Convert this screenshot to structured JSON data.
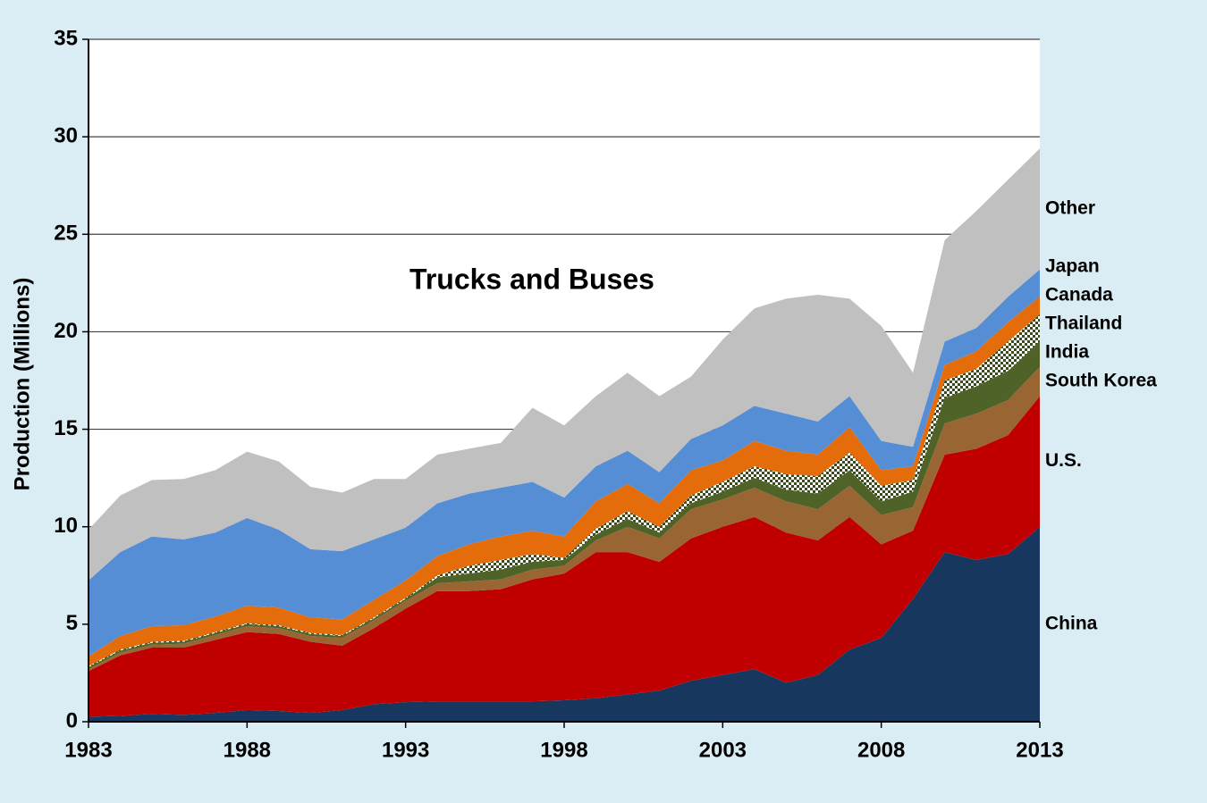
{
  "chart_data": {
    "type": "stacked_area",
    "title": "Trucks and Buses",
    "y_label": "Production (Millions)",
    "x": [
      1983,
      1984,
      1985,
      1986,
      1987,
      1988,
      1989,
      1990,
      1991,
      1992,
      1993,
      1994,
      1995,
      1996,
      1997,
      1998,
      1999,
      2000,
      2001,
      2002,
      2003,
      2004,
      2005,
      2006,
      2007,
      2008,
      2009,
      2010,
      2011,
      2012,
      2013
    ],
    "xlim": [
      1983,
      2013
    ],
    "xticks": [
      1983,
      1988,
      1993,
      1998,
      2003,
      2008,
      2013
    ],
    "ylim": [
      0,
      35
    ],
    "yticks": [
      0,
      5,
      10,
      15,
      20,
      25,
      30,
      35
    ],
    "grid": true,
    "series": [
      {
        "name": "China",
        "color": "#17375e",
        "values": [
          0.25,
          0.3,
          0.4,
          0.35,
          0.45,
          0.6,
          0.55,
          0.45,
          0.6,
          0.9,
          1.0,
          1.05,
          1.05,
          1.05,
          1.05,
          1.1,
          1.2,
          1.4,
          1.6,
          2.1,
          2.4,
          2.7,
          2.0,
          2.4,
          3.7,
          4.3,
          6.3,
          8.7,
          8.3,
          8.6,
          10.0
        ]
      },
      {
        "name": "U.S.",
        "color": "#c00000",
        "values": [
          2.35,
          3.1,
          3.4,
          3.45,
          3.75,
          4.0,
          3.95,
          3.65,
          3.3,
          3.9,
          4.8,
          5.65,
          5.65,
          5.75,
          6.25,
          6.5,
          7.5,
          7.3,
          6.6,
          7.3,
          7.6,
          7.8,
          7.7,
          6.9,
          6.8,
          4.8,
          3.5,
          5.0,
          5.7,
          6.1,
          6.7
        ]
      },
      {
        "name": "South Korea",
        "color": "#996633",
        "values": [
          0.1,
          0.15,
          0.15,
          0.2,
          0.25,
          0.3,
          0.3,
          0.3,
          0.4,
          0.4,
          0.4,
          0.4,
          0.5,
          0.5,
          0.5,
          0.4,
          0.6,
          1.3,
          1.2,
          1.5,
          1.4,
          1.5,
          1.6,
          1.6,
          1.6,
          1.5,
          1.2,
          1.6,
          1.8,
          1.8,
          1.5
        ]
      },
      {
        "name": "India",
        "color": "#4f6228",
        "values": [
          0.1,
          0.1,
          0.1,
          0.1,
          0.1,
          0.1,
          0.1,
          0.1,
          0.1,
          0.1,
          0.1,
          0.3,
          0.4,
          0.5,
          0.4,
          0.3,
          0.3,
          0.4,
          0.3,
          0.3,
          0.4,
          0.5,
          0.6,
          0.8,
          0.8,
          0.7,
          0.8,
          1.3,
          1.4,
          1.5,
          1.3
        ]
      },
      {
        "name": "Thailand",
        "color": "#3a4a1e",
        "pattern": "checker",
        "values": [
          0.05,
          0.05,
          0.05,
          0.05,
          0.05,
          0.05,
          0.05,
          0.05,
          0.05,
          0.05,
          0.05,
          0.1,
          0.4,
          0.5,
          0.4,
          0.1,
          0.3,
          0.4,
          0.3,
          0.4,
          0.5,
          0.6,
          0.8,
          0.9,
          0.9,
          0.8,
          0.6,
          0.9,
          0.9,
          1.5,
          1.4
        ]
      },
      {
        "name": "Canada",
        "color": "#e46c0a",
        "values": [
          0.5,
          0.7,
          0.8,
          0.8,
          0.8,
          0.9,
          0.9,
          0.8,
          0.8,
          0.9,
          0.9,
          1.0,
          1.1,
          1.2,
          1.2,
          1.1,
          1.4,
          1.4,
          1.2,
          1.3,
          1.1,
          1.3,
          1.2,
          1.1,
          1.3,
          0.8,
          0.7,
          0.8,
          0.9,
          1.0,
          0.9
        ]
      },
      {
        "name": "Japan",
        "color": "#558ed5",
        "values": [
          3.9,
          4.3,
          4.6,
          4.4,
          4.3,
          4.5,
          4.0,
          3.5,
          3.5,
          3.1,
          2.7,
          2.7,
          2.6,
          2.5,
          2.5,
          2.0,
          1.8,
          1.7,
          1.6,
          1.6,
          1.8,
          1.8,
          1.9,
          1.7,
          1.6,
          1.5,
          1.0,
          1.2,
          1.2,
          1.3,
          1.4
        ]
      },
      {
        "name": "Other",
        "color": "#c0c0c0",
        "values": [
          2.6,
          2.9,
          2.9,
          3.1,
          3.2,
          3.4,
          3.5,
          3.2,
          3.0,
          3.1,
          2.5,
          2.5,
          2.3,
          2.3,
          3.8,
          3.7,
          3.6,
          4.0,
          3.9,
          3.2,
          4.4,
          5.0,
          5.9,
          6.5,
          5.0,
          5.9,
          3.8,
          5.2,
          6.0,
          6.0,
          6.2
        ]
      }
    ]
  }
}
